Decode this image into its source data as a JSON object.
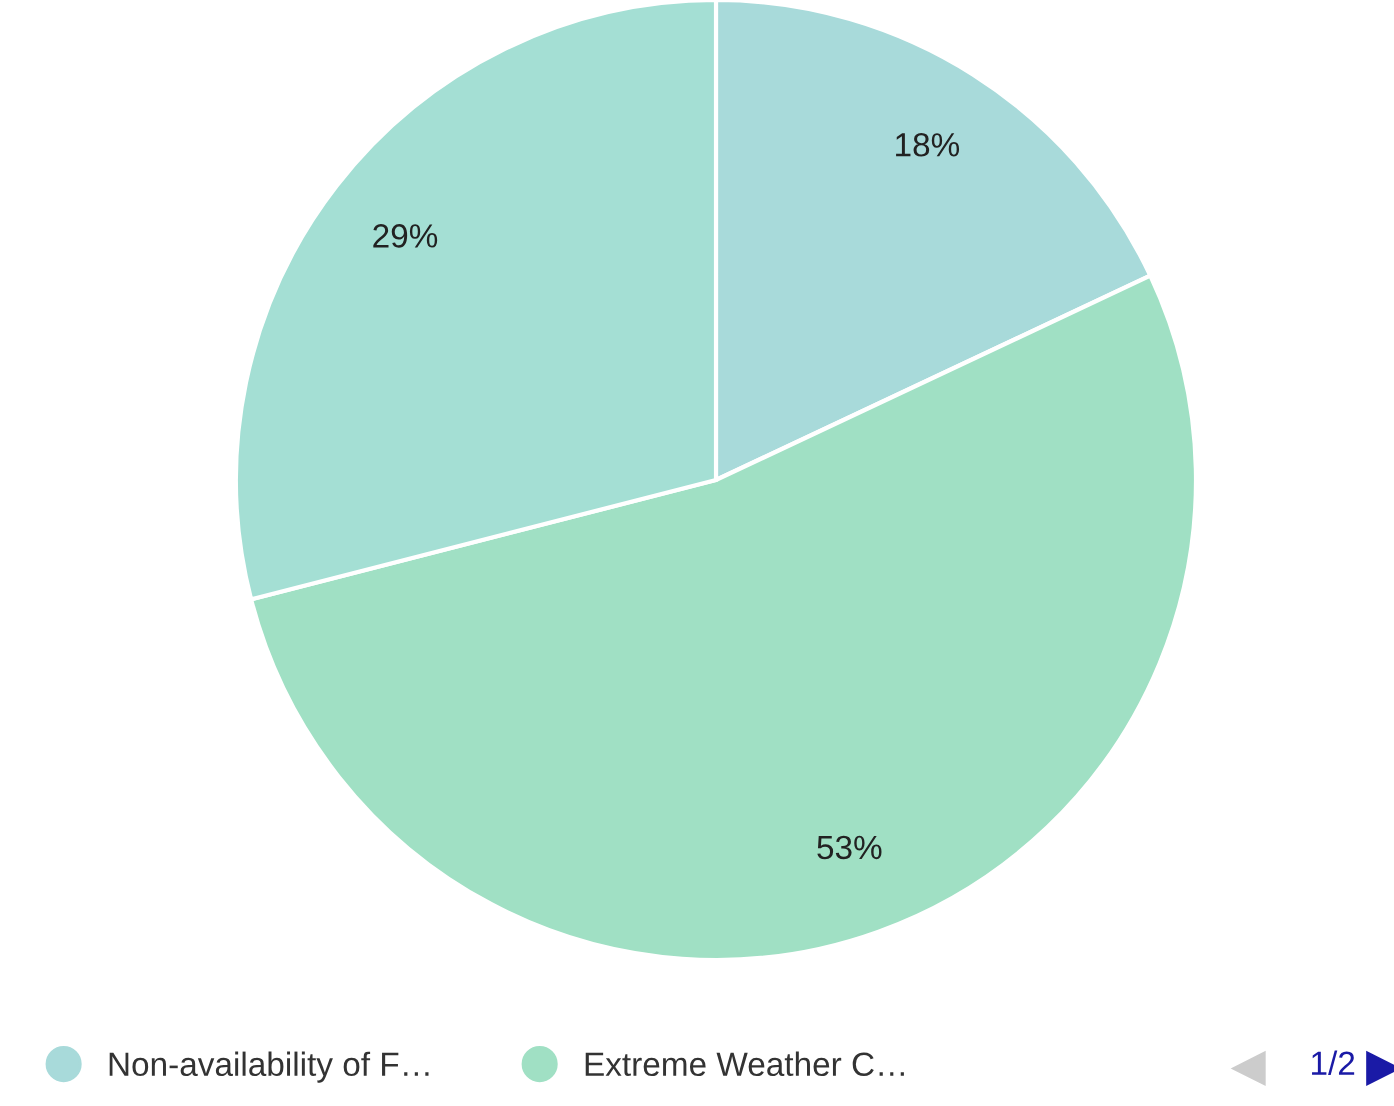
{
  "chart_data": {
    "type": "pie",
    "categories": [
      "Non-availability of F…",
      "Extreme Weather C…",
      null
    ],
    "values": [
      18,
      53,
      29
    ],
    "colors": [
      "#a8dada",
      "#a0e0c4",
      "#a4dfd4"
    ],
    "value_labels": [
      "18%",
      "53%",
      "29%"
    ],
    "legend": "bottom",
    "annotations": [
      "1/2"
    ]
  }
}
